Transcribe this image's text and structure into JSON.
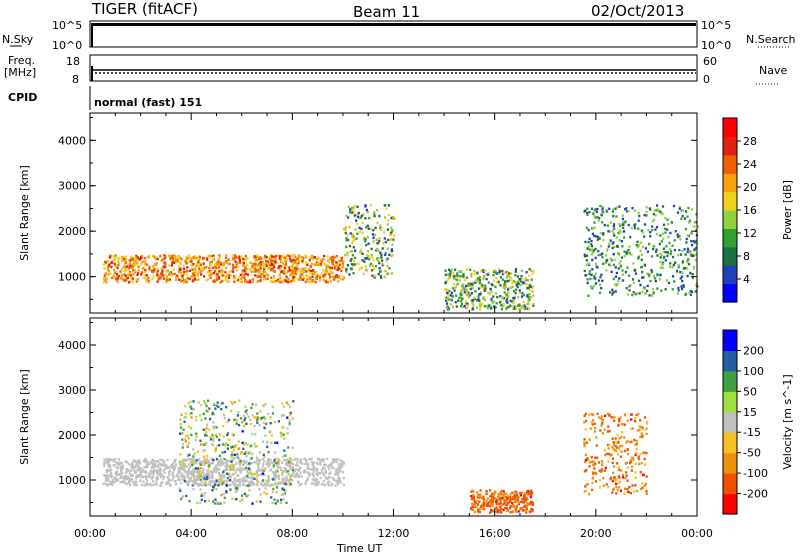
{
  "header": {
    "radar": "TIGER (fitACF)",
    "beam": "Beam 11",
    "date": "02/Oct/2013"
  },
  "strips": {
    "nsky_label": "N.Sky",
    "nsearch_label": "N.Search",
    "nsky_ticks": [
      "10^5",
      "10^0"
    ],
    "nsearch_ticks": [
      "10^5",
      "10^0"
    ],
    "freq_label_1": "Freq.",
    "freq_label_2": "[MHz]",
    "freq_ticks": [
      "18",
      "8"
    ],
    "nave_label": "Nave",
    "nave_ticks": [
      "60",
      "0"
    ],
    "cpid_label": "CPID",
    "cpid_value": "normal (fast) 151"
  },
  "chart_data": [
    {
      "type": "heatmap",
      "title": "",
      "xlabel": "Time UT",
      "ylabel": "Slant Range [km]",
      "x_ticks": [
        "00:00",
        "04:00",
        "08:00",
        "12:00",
        "16:00",
        "20:00",
        "00:00"
      ],
      "xlim_hours": [
        0,
        24
      ],
      "y_ticks": [
        1000,
        2000,
        3000,
        4000
      ],
      "ylim": [
        200,
        4600
      ],
      "colorbar": {
        "label": "Power [dB]",
        "ticks": [
          "28",
          "24",
          "20",
          "16",
          "12",
          "8",
          "4"
        ],
        "range": [
          0,
          32
        ],
        "colors": [
          "#0000ff",
          "#2040c0",
          "#1c7040",
          "#30a030",
          "#90d040",
          "#f0d020",
          "#f8a010",
          "#f06000",
          "#e02010",
          "#ff0000"
        ]
      },
      "features": [
        {
          "time_start": "00:30",
          "time_end": "10:00",
          "range_km": [
            900,
            1500
          ],
          "power_db": [
            16,
            28
          ]
        },
        {
          "time_start": "10:00",
          "time_end": "12:00",
          "range_km": [
            1000,
            2600
          ],
          "power_db": [
            4,
            20
          ]
        },
        {
          "time_start": "14:00",
          "time_end": "17:30",
          "range_km": [
            300,
            1200
          ],
          "power_db": [
            4,
            20
          ]
        },
        {
          "time_start": "19:30",
          "time_end": "24:00",
          "range_km": [
            600,
            2600
          ],
          "power_db": [
            4,
            16
          ]
        }
      ]
    },
    {
      "type": "heatmap",
      "title": "",
      "xlabel": "Time UT",
      "ylabel": "Slant Range [km]",
      "x_ticks": [
        "00:00",
        "04:00",
        "08:00",
        "12:00",
        "16:00",
        "20:00",
        "00:00"
      ],
      "xlim_hours": [
        0,
        24
      ],
      "y_ticks": [
        1000,
        2000,
        3000,
        4000
      ],
      "ylim": [
        200,
        4600
      ],
      "colorbar": {
        "label": "Velocity [m s^-1]",
        "ticks": [
          "200",
          "100",
          "50",
          "15",
          "-15",
          "-50",
          "-100",
          "-200"
        ],
        "range": [
          -250,
          250
        ],
        "colors": [
          "#ff0000",
          "#f05000",
          "#f09010",
          "#f8c020",
          "#c0c0c0",
          "#a0e040",
          "#40a040",
          "#2060a0",
          "#0000ff"
        ]
      },
      "features": [
        {
          "time_start": "00:30",
          "time_end": "10:00",
          "range_km": [
            900,
            1500
          ],
          "velocity": "ground scatter (~0)"
        },
        {
          "time_start": "03:30",
          "time_end": "08:00",
          "range_km": [
            500,
            2800
          ],
          "velocity": [
            -100,
            200
          ]
        },
        {
          "time_start": "15:00",
          "time_end": "17:30",
          "range_km": [
            300,
            800
          ],
          "velocity": [
            -200,
            -100
          ]
        },
        {
          "time_start": "19:30",
          "time_end": "22:00",
          "range_km": [
            700,
            2500
          ],
          "velocity": [
            -200,
            -50
          ]
        }
      ]
    }
  ]
}
